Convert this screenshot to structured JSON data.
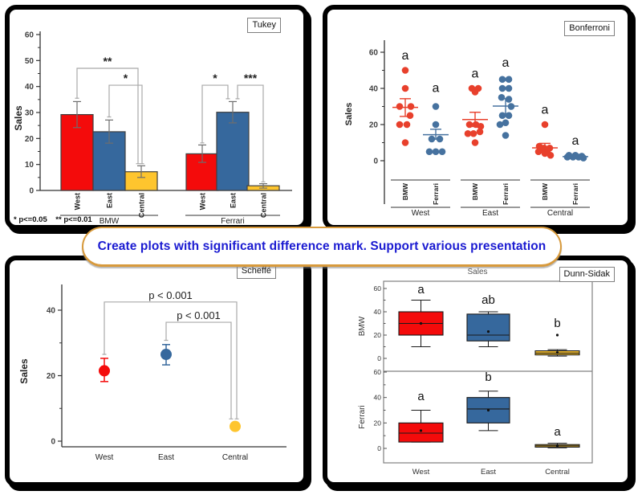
{
  "banner": {
    "text": "Create plots with significant difference mark. Support various presentation",
    "text_color": "#1b1bd1",
    "border_color": "#d89a3c"
  },
  "colors": {
    "red": "#f40b0b",
    "blue": "#36689d",
    "yellow": "#fec52e",
    "dot_red": "#e8402c",
    "dot_blue": "#46729f",
    "bracket_gray": "#a9a9a9",
    "frame_gray": "#808080"
  },
  "chart_data": [
    {
      "id": "tukey",
      "type": "bar",
      "title": "Tukey",
      "ylabel": "Sales",
      "ylim": [
        0,
        62
      ],
      "yticks": [
        0,
        10,
        20,
        30,
        40,
        50,
        60
      ],
      "footnote": "* p<=0.05    ** p<=0.01",
      "groups": [
        {
          "label": "BMW",
          "bars": [
            {
              "label": "West",
              "value": 29.2,
              "err_low": 24.2,
              "err_high": 34.2,
              "color_key": "red"
            },
            {
              "label": "East",
              "value": 22.6,
              "err_low": 18.2,
              "err_high": 27.1,
              "color_key": "blue"
            },
            {
              "label": "Central",
              "value": 7.2,
              "err_low": 5.0,
              "err_high": 9.5,
              "color_key": "yellow"
            }
          ]
        },
        {
          "label": "Ferrari",
          "bars": [
            {
              "label": "West",
              "value": 14.1,
              "err_low": 10.8,
              "err_high": 17.5,
              "color_key": "red"
            },
            {
              "label": "East",
              "value": 30.1,
              "err_low": 26.0,
              "err_high": 34.2,
              "color_key": "blue"
            },
            {
              "label": "Central",
              "value": 1.8,
              "err_low": 0.9,
              "err_high": 2.6,
              "color_key": "yellow"
            }
          ]
        }
      ],
      "significance": [
        {
          "label": "**",
          "group": 0,
          "from": 0,
          "to": 2,
          "from_off": 0,
          "to_off": -4,
          "top": 47.0,
          "from_end": 35.5,
          "to_end": 10.3
        },
        {
          "label": "*",
          "group": 0,
          "from": 1,
          "to": 2,
          "from_off": 0,
          "to_off": 1,
          "top": 40.5,
          "from_end": 28.3,
          "to_end": 10.3
        },
        {
          "label": "*",
          "group": 1,
          "from": 0,
          "to": 1,
          "from_off": 0,
          "to_off": -6,
          "top": 40.5,
          "from_end": 18.3,
          "to_end": 35.3
        },
        {
          "label": "***",
          "group": 1,
          "from": 1,
          "to": 2,
          "from_off": 6,
          "to_off": 0,
          "top": 40.5,
          "from_end": 35.3,
          "to_end": 3.3
        }
      ]
    },
    {
      "id": "bonferroni",
      "type": "dot",
      "title": "Bonferroni",
      "ylabel": "Sales",
      "ylim": [
        -8,
        68
      ],
      "yticks": [
        0,
        20,
        40,
        60
      ],
      "groups": [
        {
          "label": "West",
          "series": [
            {
              "label": "BMW",
              "color_key": "dot_red",
              "letter": "a",
              "letter_y": 56,
              "mean": 29.5,
              "err_low": 24.5,
              "err_high": 34.3,
              "points": [
                [
                  0,
                  50
                ],
                [
                  0,
                  40
                ],
                [
                  -7,
                  30
                ],
                [
                  7,
                  30
                ],
                [
                  6,
                  25
                ],
                [
                  -7,
                  20
                ],
                [
                  2,
                  20
                ],
                [
                  0,
                  10
                ]
              ]
            },
            {
              "label": "Ferrari",
              "color_key": "dot_blue",
              "letter": "a",
              "letter_y": 38,
              "mean": 14.4,
              "err_low": 11.9,
              "err_high": 17.4,
              "points": [
                [
                  0,
                  30
                ],
                [
                  0,
                  20
                ],
                [
                  -5,
                  12
                ],
                [
                  5,
                  12
                ],
                [
                  -8,
                  5
                ],
                [
                  0,
                  5
                ],
                [
                  8,
                  5
                ]
              ]
            }
          ]
        },
        {
          "label": "East",
          "series": [
            {
              "label": "BMW",
              "color_key": "dot_red",
              "letter": "a",
              "letter_y": 46,
              "mean": 22.8,
              "err_low": 18.9,
              "err_high": 26.8,
              "points": [
                [
                  -4,
                  40
                ],
                [
                  4,
                  40
                ],
                [
                  0,
                  38
                ],
                [
                  -7,
                  20
                ],
                [
                  1,
                  20
                ],
                [
                  7,
                  19
                ],
                [
                  -9,
                  15
                ],
                [
                  -2,
                  15
                ],
                [
                  6,
                  16
                ],
                [
                  0,
                  10
                ]
              ]
            },
            {
              "label": "Ferrari",
              "color_key": "dot_blue",
              "letter": "a",
              "letter_y": 52,
              "mean": 30.2,
              "err_low": 26.1,
              "err_high": 34.3,
              "points": [
                [
                  -4,
                  45
                ],
                [
                  4,
                  45
                ],
                [
                  -4,
                  40
                ],
                [
                  4,
                  40
                ],
                [
                  -5,
                  35
                ],
                [
                  4,
                  34
                ],
                [
                  7,
                  30
                ],
                [
                  -4,
                  25
                ],
                [
                  4,
                  25
                ],
                [
                  0,
                  21
                ],
                [
                  -7,
                  20
                ],
                [
                  0,
                  14
                ]
              ]
            }
          ]
        },
        {
          "label": "Central",
          "series": [
            {
              "label": "BMW",
              "color_key": "dot_red",
              "letter": "a",
              "letter_y": 26,
              "mean": 7.1,
              "err_low": 4.6,
              "err_high": 9.6,
              "points": [
                [
                  0,
                  20
                ],
                [
                  -7,
                  8
                ],
                [
                  -1,
                  7
                ],
                [
                  6,
                  7
                ],
                [
                  -4,
                  6
                ],
                [
                  3,
                  5
                ],
                [
                  -8,
                  5
                ],
                [
                  0,
                  4
                ],
                [
                  7,
                  3
                ]
              ]
            },
            {
              "label": "Ferrari",
              "color_key": "dot_blue",
              "letter": "a",
              "letter_y": 9,
              "mean": 2.3,
              "err_low": 1.5,
              "err_high": 3.1,
              "points": [
                [
                  -8,
                  3
                ],
                [
                  0,
                  3
                ],
                [
                  8,
                  2.5
                ],
                [
                  -3,
                  2
                ],
                [
                  4,
                  2
                ],
                [
                  -10,
                  2
                ],
                [
                  10,
                  1.5
                ]
              ]
            }
          ]
        }
      ]
    },
    {
      "id": "scheffe",
      "type": "meanerr",
      "title": "Scheffé",
      "ylabel": "Sales",
      "ylim": [
        -3,
        48
      ],
      "yticks": [
        0,
        20,
        40
      ],
      "points": [
        {
          "label": "West",
          "color_key": "red",
          "value": 21.5,
          "err_low": 18.2,
          "err_high": 25.3
        },
        {
          "label": "East",
          "color_key": "blue",
          "value": 26.5,
          "err_low": 23.3,
          "err_high": 29.5
        },
        {
          "label": "Central",
          "color_key": "yellow",
          "value": 4.5
        }
      ],
      "brackets": [
        {
          "label": "p < 0.001",
          "from": 0,
          "to": 2,
          "from_off": 0,
          "to_off": 2,
          "top": 42.5,
          "from_end": 26.5,
          "to_end": 6.8
        },
        {
          "label": "p < 0.001",
          "from": 1,
          "to": 2,
          "from_off": 0,
          "to_off": -5,
          "top": 36.3,
          "from_end": 30.8,
          "to_end": 6.8
        }
      ]
    },
    {
      "id": "dunn_sidak",
      "type": "box",
      "title": "Dunn-Sidak",
      "suptitle": "Sales",
      "xcats": [
        "West",
        "East",
        "Central"
      ],
      "subpanels": [
        {
          "ylabel": "BMW",
          "ylim": [
            -8,
            68
          ],
          "yticks": [
            0,
            20,
            40,
            60
          ],
          "boxes": [
            {
              "color_key": "red",
              "letter": "a",
              "letter_y": 56,
              "whisker_low": 10,
              "q1": 20,
              "median": 30,
              "q3": 40,
              "whisker_high": 50,
              "mean": 30
            },
            {
              "color_key": "blue",
              "letter": "ab",
              "letter_y": 47,
              "whisker_low": 10,
              "q1": 15,
              "median": 20,
              "q3": 38,
              "whisker_high": 40,
              "mean": 23
            },
            {
              "color_key": "yellow",
              "letter": "b",
              "letter_y": 27,
              "whisker_low": 2,
              "q1": 3,
              "median": 4.5,
              "q3": 6.5,
              "whisker_high": 7.5,
              "mean": 5,
              "outliers": [
                20
              ]
            }
          ]
        },
        {
          "ylabel": "Ferrari",
          "ylim": [
            -8,
            68
          ],
          "yticks": [
            0,
            20,
            40,
            60
          ],
          "boxes": [
            {
              "color_key": "red",
              "letter": "a",
              "letter_y": 38,
              "whisker_low": 5,
              "q1": 5,
              "median": 12,
              "q3": 20,
              "whisker_high": 30,
              "mean": 14
            },
            {
              "color_key": "blue",
              "letter": "b",
              "letter_y": 53,
              "whisker_low": 14,
              "q1": 20,
              "median": 31,
              "q3": 40,
              "whisker_high": 45,
              "mean": 30
            },
            {
              "color_key": "yellow",
              "letter": "a",
              "letter_y": 10,
              "whisker_low": 0.5,
              "q1": 1,
              "median": 2,
              "q3": 3,
              "whisker_high": 4,
              "mean": 2
            }
          ]
        }
      ]
    }
  ]
}
